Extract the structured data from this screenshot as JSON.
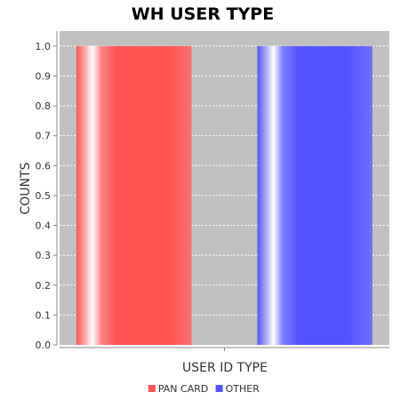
{
  "chart_data": {
    "type": "bar",
    "title": "WH USER TYPE",
    "xlabel": "USER ID TYPE",
    "ylabel": "COUNTS",
    "categories": [
      ""
    ],
    "series": [
      {
        "name": "PAN CARD",
        "values": [
          1.0
        ],
        "color": "#ff5555"
      },
      {
        "name": "OTHER",
        "values": [
          1.0
        ],
        "color": "#5555ff"
      }
    ],
    "ylim": [
      0.0,
      1.05
    ],
    "yticks": [
      "0.0",
      "0.1",
      "0.2",
      "0.3",
      "0.4",
      "0.5",
      "0.6",
      "0.7",
      "0.8",
      "0.9",
      "1.0"
    ],
    "grid": true,
    "plot_background": "#c0c0c0",
    "gridline_color": "#ffffff",
    "legend_position": "bottom"
  }
}
